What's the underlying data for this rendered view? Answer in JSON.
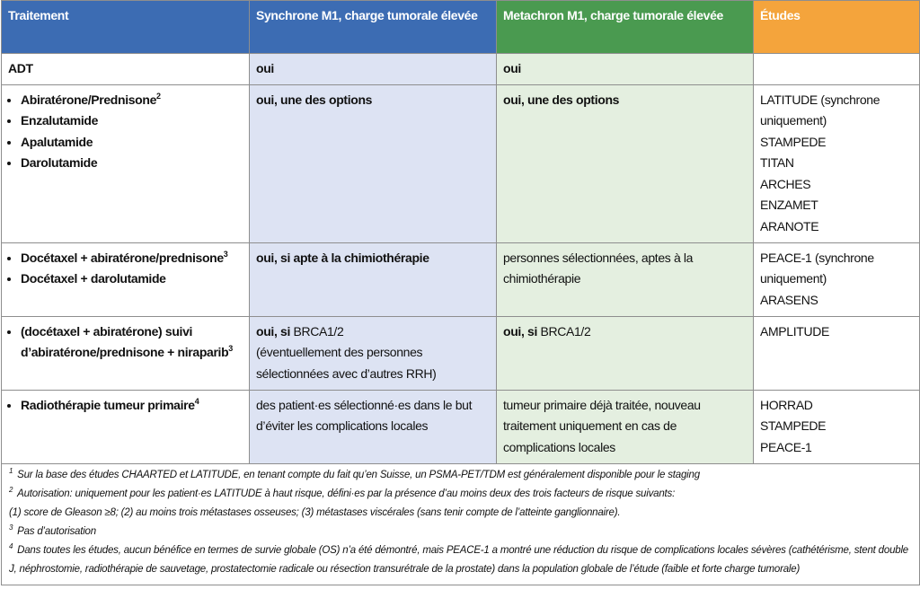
{
  "header": [
    "Traitement",
    "Synchrone M1, charge tumorale élevée",
    "Metachron M1, charge tumorale élevée",
    "Études"
  ],
  "rows": [
    [
      {
        "list": false,
        "items": [
          [
            {
              "text": "ADT",
              "bold": true
            }
          ]
        ]
      },
      {
        "list": false,
        "items": [
          [
            {
              "text": "oui",
              "bold": true
            }
          ]
        ]
      },
      {
        "list": false,
        "items": [
          [
            {
              "text": "oui",
              "bold": true
            }
          ]
        ]
      },
      {
        "list": false,
        "items": []
      }
    ],
    [
      {
        "list": true,
        "items": [
          [
            {
              "text": "Abiratérone/Prednisone",
              "bold": true
            },
            {
              "sup": "2"
            }
          ],
          [
            {
              "text": "Enzalutamide",
              "bold": true
            }
          ],
          [
            {
              "text": "Apalutamide",
              "bold": true
            }
          ],
          [
            {
              "text": "Darolutamide",
              "bold": true
            }
          ]
        ]
      },
      {
        "list": false,
        "items": [
          [
            {
              "text": "oui, une des options",
              "bold": true
            }
          ]
        ]
      },
      {
        "list": false,
        "items": [
          [
            {
              "text": "oui, une des options",
              "bold": true
            }
          ]
        ]
      },
      {
        "list": false,
        "items": [
          [
            {
              "text": "LATITUDE (synchrone uniquement)"
            }
          ],
          [
            {
              "text": "STAMPEDE"
            }
          ],
          [
            {
              "text": "TITAN"
            }
          ],
          [
            {
              "text": "ARCHES"
            }
          ],
          [
            {
              "text": "ENZAMET"
            }
          ],
          [
            {
              "text": "ARANOTE"
            }
          ]
        ]
      }
    ],
    [
      {
        "list": true,
        "items": [
          [
            {
              "text": "Docétaxel + abiratérone/predni­sone",
              "bold": true
            },
            {
              "sup": "3"
            }
          ],
          [
            {
              "text": "Docétaxel + darolutamide",
              "bold": true
            }
          ]
        ]
      },
      {
        "list": false,
        "items": [
          [
            {
              "text": "oui, si apte à la chimiothérapie",
              "bold": true
            }
          ]
        ]
      },
      {
        "list": false,
        "items": [
          [
            {
              "text": "personnes sélectionnées, aptes à la chimiothérapie"
            }
          ]
        ]
      },
      {
        "list": false,
        "items": [
          [
            {
              "text": "PEACE-1 (synchrone uniquement)"
            }
          ],
          [
            {
              "text": "ARASENS"
            }
          ]
        ]
      }
    ],
    [
      {
        "list": true,
        "items": [
          [
            {
              "text": "(docétaxel + abiratérone) suivi d’abiratérone/prednisone + nira­parib",
              "bold": true
            },
            {
              "sup": "3"
            }
          ]
        ]
      },
      {
        "list": false,
        "items": [
          [
            {
              "text": "oui, si",
              "bold": true
            },
            {
              "text": "BRCA1/2"
            }
          ],
          [
            {
              "text": "(éventuellement des personnes sélectionnées avec d’autres RRH)"
            }
          ]
        ]
      },
      {
        "list": false,
        "items": [
          [
            {
              "text": "oui, si",
              "bold": true
            },
            {
              "text": "BRCA1/2"
            }
          ]
        ]
      },
      {
        "list": false,
        "items": [
          [
            {
              "text": "AMPLITUDE"
            }
          ]
        ]
      }
    ],
    [
      {
        "list": true,
        "items": [
          [
            {
              "text": "Radiothérapie tumeur primaire",
              "bold": true
            },
            {
              "sup": "4"
            }
          ]
        ]
      },
      {
        "list": false,
        "items": [
          [
            {
              "text": "des patient·es sélectionné·es dans le but d’éviter les complications locales"
            }
          ]
        ]
      },
      {
        "list": false,
        "items": [
          [
            {
              "text": "tumeur primaire déjà traitée, nouveau traitement uniquement en cas de complications locales"
            }
          ]
        ]
      },
      {
        "list": false,
        "items": [
          [
            {
              "text": "HORRAD"
            }
          ],
          [
            {
              "text": "STAMPEDE"
            }
          ],
          [
            {
              "text": "PEACE-1"
            }
          ]
        ]
      }
    ]
  ],
  "footnotes": [
    [
      {
        "sup": "1"
      },
      {
        "text": "Sur la base des études CHAARTED et LATITUDE, en tenant compte du fait qu’en Suisse, un PSMA-PET/TDM est généralement disponible pour le staging"
      }
    ],
    [
      {
        "sup": "2"
      },
      {
        "text": "Autorisation: uniquement pour les patient·es LATITUDE à haut risque, défini·es par la présence d’au moins deux des trois facteurs de risque suivants:"
      }
    ],
    [
      {
        "text": "(1) score de Gleason ≥8; (2) au moins trois métastases osseuses; (3) métastases viscérales (sans tenir compte de l’atteinte ganglionnaire)."
      }
    ],
    [
      {
        "sup": "3"
      },
      {
        "text": "Pas d’autorisation"
      }
    ],
    [
      {
        "sup": "4"
      },
      {
        "text": "Dans toutes les études, aucun bénéfice en termes de survie globale (OS) n’a été démontré, mais PEACE-1 a montré une réduction du risque de complications locales sévères (cathétérisme, stent double J, néphrostomie, radiothérapie de sauvetage, prostatectomie radicale ou résection transurétrale de la prostate) dans la population globale de l’étude (faible et forte charge tumorale)"
      }
    ]
  ]
}
